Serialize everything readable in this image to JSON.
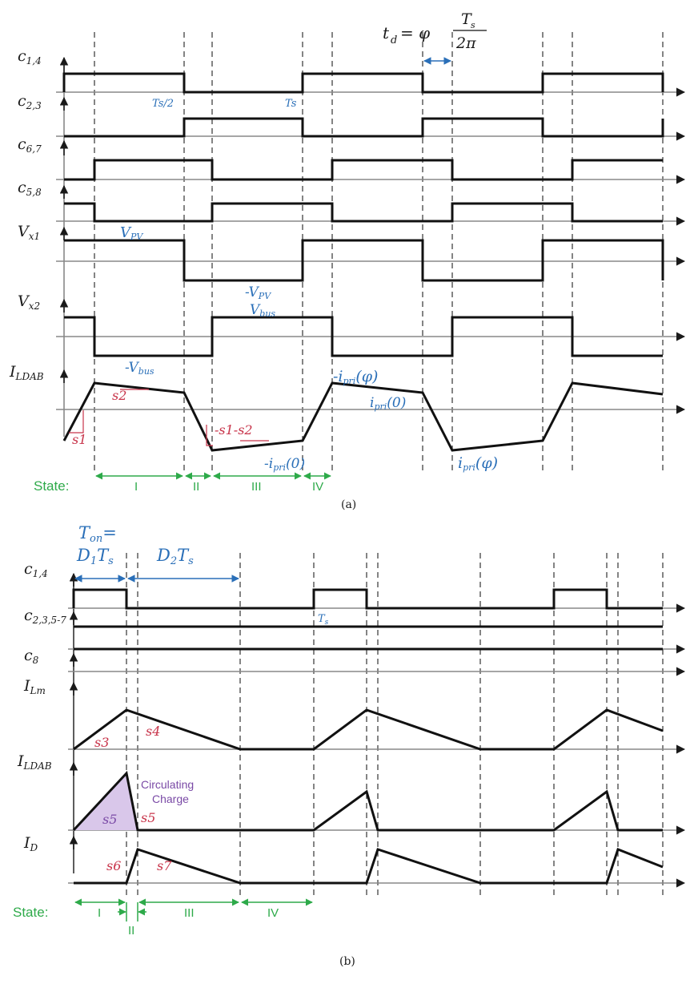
{
  "panel_a": {
    "caption": "(a)",
    "td_formula": {
      "lhs": "t",
      "lhs_sub": "d",
      "eq": " = φ",
      "num": "T",
      "num_sub": "s",
      "den": "2π"
    },
    "signal_labels": [
      {
        "main": "c",
        "sub": "1,4"
      },
      {
        "main": "c",
        "sub": "2,3"
      },
      {
        "main": "c",
        "sub": "6,7"
      },
      {
        "main": "c",
        "sub": "5,8"
      },
      {
        "main": "V",
        "sub": "x1"
      },
      {
        "main": "V",
        "sub": "x2"
      },
      {
        "main": "I",
        "sub": "LDAB"
      }
    ],
    "annotations": {
      "ts_half": "Ts/2",
      "ts": "Ts",
      "vpv": "V",
      "vpv_sub": "PV",
      "neg_vpv": "-V",
      "vbus": "V",
      "vbus_sub": "bus",
      "neg_vbus": "-V",
      "s1": "s1",
      "s2": "s2",
      "neg_s1_s2": "-s1-s2",
      "neg_ipri_phi": "-i",
      "ipri_sub": "pri",
      "phi_arg": "(φ)",
      "zero_arg": "(0)",
      "ipri0": "i",
      "neg_ipri0": "-i",
      "ipri_phi": "i"
    },
    "states_label": "State:",
    "states": [
      "I",
      "II",
      "III",
      "IV"
    ]
  },
  "panel_b": {
    "caption": "(b)",
    "ton_label": "T",
    "ton_sub": "on",
    "ton_eq": "=",
    "d1ts": "D",
    "d1_sub": "1",
    "d2ts": "D",
    "d2_sub": "2",
    "ts_sym": "T",
    "ts_sub": "s",
    "signal_labels": [
      {
        "main": "c",
        "sub": "1,4"
      },
      {
        "main": "c",
        "sub": "2,3,5-7"
      },
      {
        "main": "c",
        "sub": "8"
      },
      {
        "main": "I",
        "sub": "Lm"
      },
      {
        "main": "I",
        "sub": "LDAB"
      },
      {
        "main": "I",
        "sub": "D"
      }
    ],
    "slopes": {
      "s3": "s3",
      "s4": "s4",
      "s5a": "s5",
      "s5b": "s5",
      "s6": "s6",
      "s7": "s7"
    },
    "circulating": [
      "Circulating",
      "Charge"
    ],
    "states_label": "State:",
    "states": [
      "I",
      "II",
      "III",
      "IV"
    ]
  },
  "colors": {
    "waveform": "#111111",
    "annotation_blue": "#2a6fb8",
    "slope_red": "#c8344a",
    "state_green": "#2eaa4a",
    "charge_purple": "#7a4aa6",
    "charge_fill": "#d9c7ea"
  }
}
